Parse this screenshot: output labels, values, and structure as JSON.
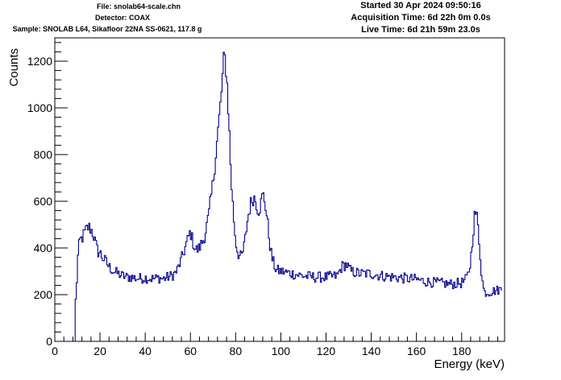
{
  "header": {
    "file": "File: snolab64-scale.chn",
    "detector": "Detector: COAX",
    "sample": "Sample: SNOLAB L64, Sikafloor 22NA SS-0621, 117.8 g",
    "started": "Started 30 Apr 2024 09:50:16",
    "acquisition": "Acquisition Time: 6d 22h 0m 0.0s",
    "live": "Live Time: 6d 21h 59m 23.0s"
  },
  "chart_data": {
    "type": "line",
    "title": "",
    "xlabel": "Energy (keV)",
    "ylabel": "Counts",
    "xlim": [
      0,
      199
    ],
    "ylim": [
      0,
      1300
    ],
    "xticks": [
      0,
      20,
      40,
      60,
      80,
      100,
      120,
      140,
      160,
      180
    ],
    "yticks": [
      0,
      200,
      400,
      600,
      800,
      1000,
      1200
    ],
    "grid": false,
    "legend": "none",
    "line_color": "#00008b",
    "series": [
      {
        "x": [
          9,
          9.5,
          10,
          11,
          12,
          13,
          14,
          15,
          16,
          17,
          18,
          19,
          20,
          21,
          22,
          23,
          24,
          25,
          26,
          28,
          30,
          32,
          34,
          36,
          38,
          40,
          42,
          44,
          46,
          48,
          50,
          52,
          54,
          56,
          58,
          59,
          60,
          61,
          62,
          63,
          64,
          65,
          66,
          68,
          70,
          71,
          72,
          73,
          74,
          75,
          76,
          77,
          78,
          79,
          80,
          81,
          82,
          83,
          84,
          85,
          86,
          87,
          88,
          89,
          90,
          91,
          92,
          93,
          94,
          95,
          96,
          97,
          98,
          100,
          105,
          110,
          115,
          120,
          125,
          127,
          129,
          131,
          135,
          140,
          145,
          150,
          155,
          160,
          165,
          170,
          175,
          180,
          182,
          183,
          184,
          185,
          186,
          187,
          188,
          189,
          190,
          192,
          194,
          196,
          198
        ],
        "values": [
          170,
          180,
          340,
          430,
          440,
          460,
          480,
          490,
          480,
          460,
          420,
          385,
          380,
          360,
          350,
          335,
          320,
          310,
          300,
          290,
          280,
          275,
          275,
          270,
          270,
          272,
          270,
          268,
          272,
          268,
          275,
          282,
          300,
          350,
          410,
          440,
          470,
          430,
          400,
          390,
          400,
          420,
          440,
          530,
          680,
          780,
          880,
          980,
          1100,
          1230,
          1150,
          950,
          700,
          550,
          430,
          380,
          360,
          370,
          420,
          500,
          560,
          600,
          620,
          600,
          560,
          580,
          630,
          600,
          520,
          430,
          360,
          330,
          305,
          300,
          290,
          280,
          275,
          275,
          280,
          320,
          330,
          300,
          290,
          290,
          280,
          275,
          270,
          265,
          255,
          250,
          245,
          250,
          265,
          290,
          340,
          460,
          560,
          520,
          400,
          270,
          210,
          210,
          215,
          220,
          225
        ]
      }
    ]
  }
}
